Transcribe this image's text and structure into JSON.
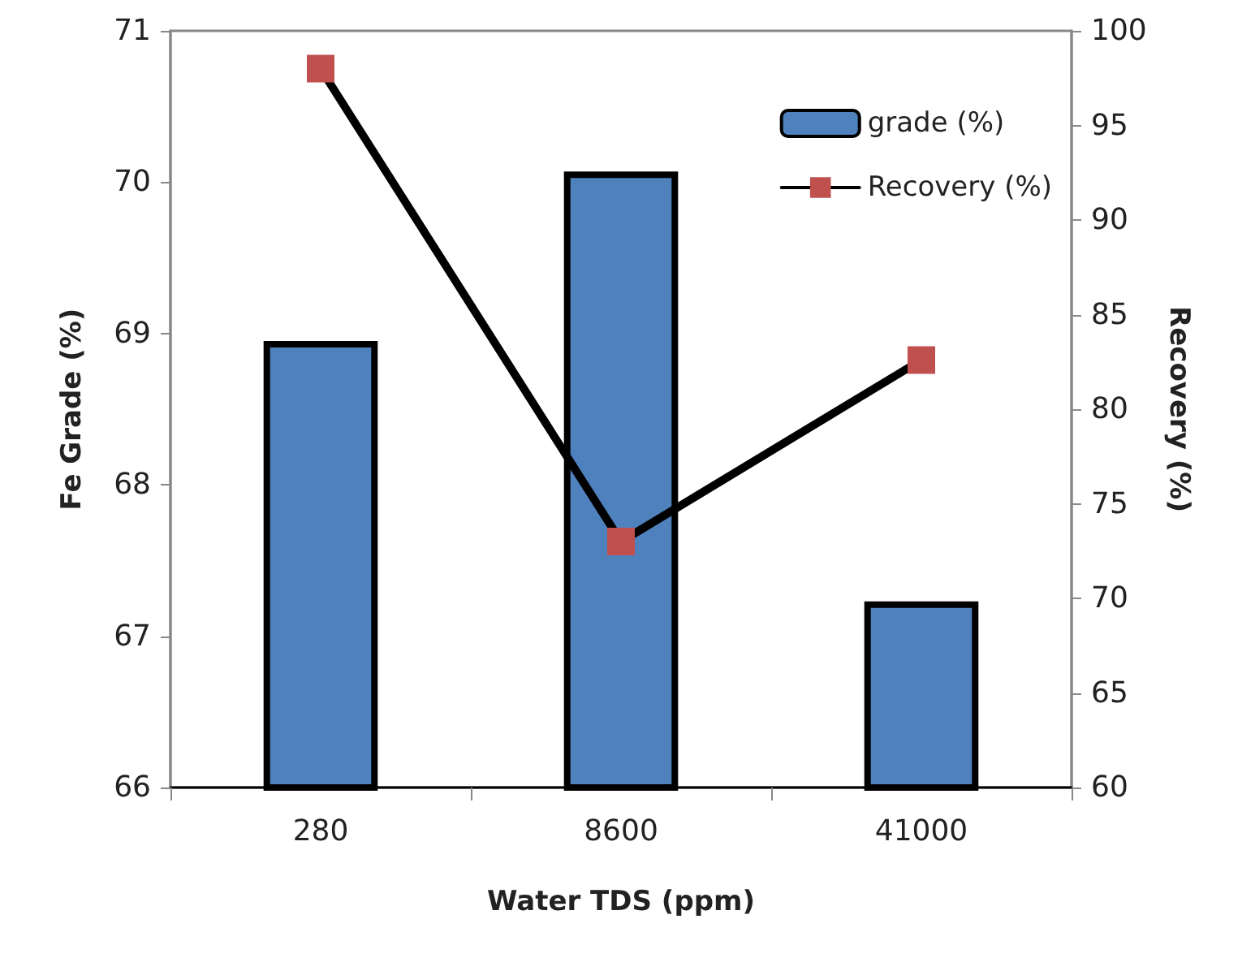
{
  "chart_data": {
    "type": "bar",
    "xlabel": "Water TDS (ppm)",
    "ylabel": "Fe Grade (%)",
    "y2label": "Recovery (%)",
    "categories": [
      "280",
      "8600",
      "41000"
    ],
    "series": [
      {
        "name": "grade (%)",
        "color": "#4f81bd",
        "values": [
          68.95,
          70.07,
          67.23
        ]
      },
      {
        "name": "Recovery (%)",
        "type": "line",
        "axis": "y2",
        "color": "#c0504d",
        "values": [
          98.0,
          73.0,
          82.6
        ]
      }
    ],
    "ylim": [
      66,
      71
    ],
    "yticks": [
      66,
      67,
      68,
      69,
      70,
      71
    ],
    "y2lim": [
      60,
      100
    ],
    "y2ticks": [
      60,
      65,
      70,
      75,
      80,
      85,
      90,
      95,
      100
    ],
    "marker": "square",
    "legend": "top right",
    "grid": false
  }
}
